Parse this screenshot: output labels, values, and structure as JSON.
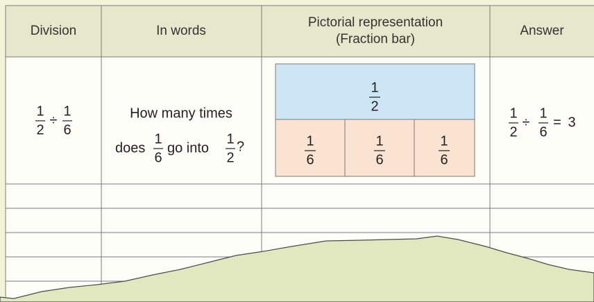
{
  "table": {
    "headers": [
      [
        "Division"
      ],
      [
        "In words"
      ],
      [
        "Pictorial representation",
        "(Fraction bar)"
      ],
      [
        "Answer"
      ]
    ],
    "rows": [
      {
        "division": {
          "dividend": {
            "numerator": 1,
            "denominator": 2
          },
          "operator": "÷",
          "divisor": {
            "numerator": 1,
            "denominator": 6
          }
        },
        "in_words": {
          "line1": "How many times",
          "before": "does",
          "fraction_a": {
            "numerator": 1,
            "denominator": 6
          },
          "middle": "go into",
          "fraction_b": {
            "numerator": 1,
            "denominator": 2
          },
          "end": "?"
        },
        "pictorial": {
          "whole": {
            "numerator": 1,
            "denominator": 2
          },
          "parts": [
            {
              "numerator": 1,
              "denominator": 6
            },
            {
              "numerator": 1,
              "denominator": 6
            },
            {
              "numerator": 1,
              "denominator": 6
            }
          ]
        },
        "answer": {
          "dividend": {
            "numerator": 1,
            "denominator": 2
          },
          "operator": "÷",
          "divisor": {
            "numerator": 1,
            "denominator": 6
          },
          "equals": "=",
          "result": 3
        }
      }
    ]
  }
}
